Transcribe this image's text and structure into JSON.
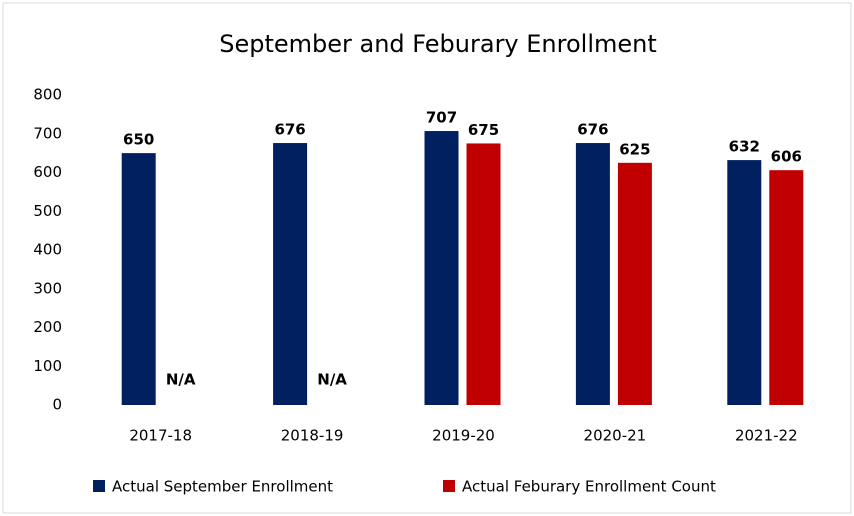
{
  "chart_data": {
    "type": "bar",
    "title": "September and Feburary Enrollment",
    "categories": [
      "2017-18",
      "2018-19",
      "2019-20",
      "2020-21",
      "2021-22"
    ],
    "series": [
      {
        "name": "Actual September Enrollment",
        "color": "#002060",
        "values": [
          650,
          676,
          707,
          676,
          632
        ]
      },
      {
        "name": "Actual Feburary Enrollment Count",
        "color": "#c00000",
        "values": [
          null,
          null,
          675,
          625,
          606
        ],
        "value_labels": [
          "N/A",
          "N/A",
          "675",
          "625",
          "606"
        ]
      }
    ],
    "ylim": [
      0,
      800
    ],
    "yticks": [
      0,
      100,
      200,
      300,
      400,
      500,
      600,
      700,
      800
    ],
    "grid": false,
    "legend": "bottom"
  }
}
